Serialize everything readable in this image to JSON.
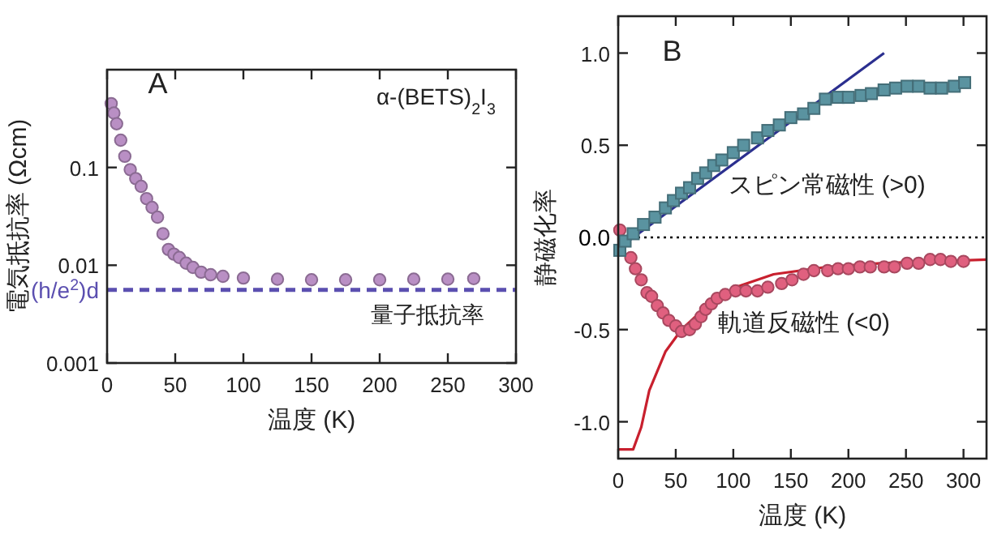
{
  "chart_data": [
    {
      "type": "scatter",
      "log": "y",
      "xlabel": "温度 (K)",
      "ylabel": "電気抵抗率 (Ωcm)",
      "xlim": [
        0,
        300
      ],
      "ylim": [
        0.001,
        1
      ],
      "xticks": [
        0,
        50,
        100,
        150,
        200,
        250,
        300
      ],
      "yticks": [
        0.001,
        0.01,
        0.1
      ],
      "marker": "circle",
      "color": "#b98fc4",
      "x": [
        3,
        5,
        7,
        10,
        13,
        17,
        21,
        25,
        29,
        33,
        37,
        41,
        45,
        49,
        53,
        58,
        63,
        69,
        76,
        85,
        100,
        125,
        150,
        175,
        200,
        225,
        250,
        269
      ],
      "values": [
        0.45,
        0.36,
        0.28,
        0.19,
        0.13,
        0.095,
        0.077,
        0.064,
        0.048,
        0.039,
        0.031,
        0.021,
        0.0145,
        0.013,
        0.012,
        0.0105,
        0.0095,
        0.0085,
        0.008,
        0.0077,
        0.0074,
        0.0072,
        0.0071,
        0.0071,
        0.0071,
        0.0072,
        0.0072,
        0.0073
      ],
      "ref_lines": [
        {
          "axis": "y",
          "value": 0.0056,
          "label": "(h/e$^{2}$)d",
          "color": "#5b4fb0",
          "line_style": "dashed"
        }
      ],
      "annotations": [
        "A",
        "α-(BETS)$_{2}$I$_{3}$",
        {
          "text": "量子抵抗率",
          "x": 235,
          "y": 0.0056
        }
      ]
    },
    {
      "type": "scatter",
      "xlabel": "温度 (K)",
      "ylabel": "静磁化率",
      "xlim": [
        0,
        320
      ],
      "ylim": [
        -1.2,
        1.2
      ],
      "xticks": [
        0,
        50,
        100,
        150,
        200,
        250,
        300
      ],
      "yticks": [
        {
          "value": -1.0,
          "label": "-1.0"
        },
        {
          "value": -0.5,
          "label": "-0.5"
        },
        {
          "value": 0.0,
          "label": "0.0"
        },
        {
          "value": 0.5,
          "label": "0.5"
        },
        {
          "value": 1.0,
          "label": "1.0"
        }
      ],
      "series": [
        {
          "type": "line",
          "marker": "none",
          "color": "#2b2f8f",
          "x": [
            0,
            231
          ],
          "values": [
            -0.06,
            1.0
          ]
        },
        {
          "type": "line",
          "marker": "none",
          "color": "#c8202e",
          "x": [
            0,
            13,
            20,
            27,
            41,
            55,
            74,
            102,
            135,
            182,
            228,
            320
          ],
          "values": [
            -1.15,
            -1.15,
            -1.03,
            -0.83,
            -0.62,
            -0.5,
            -0.39,
            -0.27,
            -0.2,
            -0.16,
            -0.14,
            -0.12
          ]
        },
        {
          "name": "軌道反磁性 (<0)",
          "marker": "circle",
          "color": "#e0607f",
          "x": [
            1.4,
            11,
            15,
            20,
            25,
            29,
            34,
            39,
            44,
            50,
            55,
            62,
            67,
            72,
            76,
            81,
            86,
            93,
            102,
            111,
            121,
            130,
            142,
            151,
            161,
            170,
            182,
            191,
            200,
            210,
            219,
            231,
            240,
            251,
            261,
            271,
            280,
            289,
            300
          ],
          "values": [
            0.04,
            -0.11,
            -0.17,
            -0.23,
            -0.3,
            -0.32,
            -0.37,
            -0.41,
            -0.45,
            -0.48,
            -0.51,
            -0.5,
            -0.47,
            -0.43,
            -0.39,
            -0.36,
            -0.33,
            -0.31,
            -0.29,
            -0.29,
            -0.29,
            -0.27,
            -0.25,
            -0.23,
            -0.2,
            -0.18,
            -0.18,
            -0.17,
            -0.17,
            -0.16,
            -0.16,
            -0.16,
            -0.16,
            -0.14,
            -0.14,
            -0.12,
            -0.12,
            -0.13,
            -0.13
          ]
        },
        {
          "name": "スピン常磁性 (>0)",
          "marker": "square",
          "color": "#5a93a0",
          "x": [
            1.4,
            6,
            13,
            22,
            32,
            41,
            48,
            55,
            62,
            69,
            76,
            83,
            90,
            100,
            109,
            121,
            130,
            140,
            150,
            161,
            170,
            180,
            191,
            200,
            211,
            220,
            231,
            241,
            251,
            261,
            271,
            281,
            292,
            301
          ],
          "values": [
            -0.07,
            -0.02,
            0.02,
            0.07,
            0.11,
            0.16,
            0.2,
            0.24,
            0.27,
            0.32,
            0.35,
            0.39,
            0.42,
            0.46,
            0.5,
            0.54,
            0.58,
            0.61,
            0.65,
            0.67,
            0.7,
            0.75,
            0.76,
            0.76,
            0.77,
            0.78,
            0.8,
            0.81,
            0.82,
            0.82,
            0.81,
            0.81,
            0.82,
            0.84
          ]
        }
      ],
      "ref_lines": [
        {
          "axis": "y",
          "value": 0,
          "color": "#000000",
          "line_style": "dotted"
        }
      ],
      "annotations": [
        "B"
      ]
    }
  ]
}
